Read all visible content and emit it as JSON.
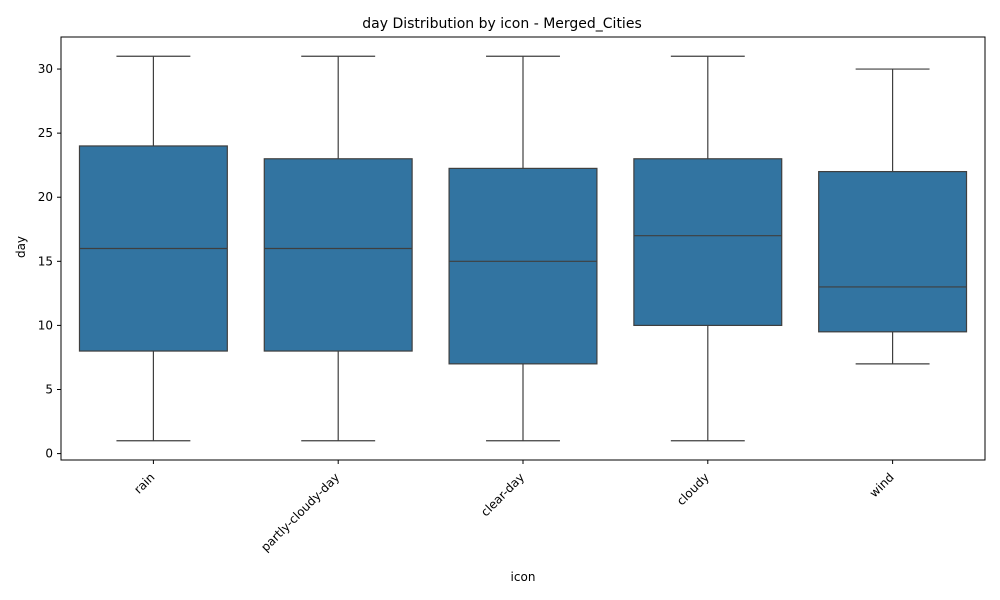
{
  "chart_data": {
    "type": "box",
    "title": "day Distribution by icon - Merged_Cities",
    "xlabel": "icon",
    "ylabel": "day",
    "ylim": [
      -0.5,
      32.5
    ],
    "yticks": [
      0,
      5,
      10,
      15,
      20,
      25,
      30
    ],
    "grid": false,
    "box_color": "#3274a1",
    "line_color": "#3f3f3f",
    "categories": [
      "rain",
      "partly-cloudy-day",
      "clear-day",
      "cloudy",
      "wind"
    ],
    "boxes": [
      {
        "category": "rain",
        "whisker_low": 1,
        "q1": 8,
        "median": 16,
        "q3": 24,
        "whisker_high": 31
      },
      {
        "category": "partly-cloudy-day",
        "whisker_low": 1,
        "q1": 8,
        "median": 16,
        "q3": 23,
        "whisker_high": 31
      },
      {
        "category": "clear-day",
        "whisker_low": 1,
        "q1": 7,
        "median": 15,
        "q3": 22.25,
        "whisker_high": 31
      },
      {
        "category": "cloudy",
        "whisker_low": 1,
        "q1": 10,
        "median": 17,
        "q3": 23,
        "whisker_high": 31
      },
      {
        "category": "wind",
        "whisker_low": 7,
        "q1": 9.5,
        "median": 13,
        "q3": 22,
        "whisker_high": 30
      }
    ]
  }
}
